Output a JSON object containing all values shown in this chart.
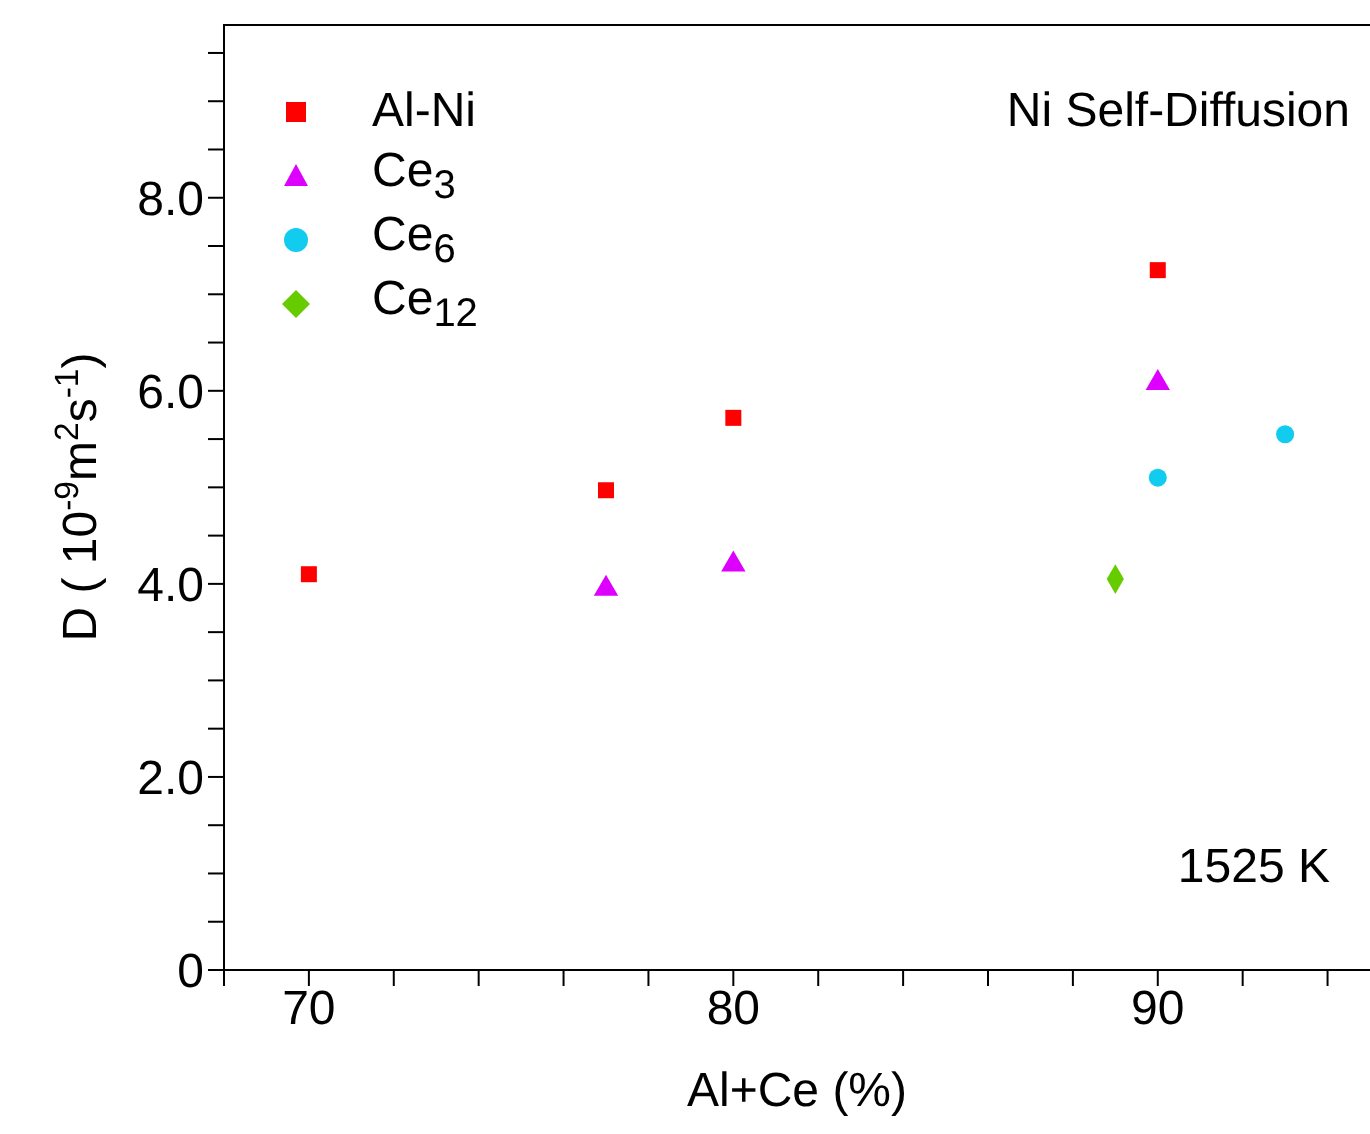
{
  "chart_data": {
    "type": "scatter",
    "xlabel": "Al+Ce (%)",
    "ylabel": "D ( 10$^{-9}$m$^{2}$s$^{-1}$)",
    "xlim": [
      68,
      95
    ],
    "ylim": [
      0,
      9.8
    ],
    "xticks": [
      {
        "value": 68,
        "label": null
      },
      70,
      {
        "value": 72,
        "label": null
      },
      {
        "value": 74,
        "label": null
      },
      {
        "value": 76,
        "label": null
      },
      {
        "value": 78,
        "label": null
      },
      80,
      {
        "value": 82,
        "label": null
      },
      {
        "value": 84,
        "label": null
      },
      {
        "value": 86,
        "label": null
      },
      {
        "value": 88,
        "label": null
      },
      90,
      {
        "value": 92,
        "label": null
      },
      {
        "value": 94,
        "label": null
      }
    ],
    "yticks": [
      0,
      {
        "value": 0.5,
        "label": null
      },
      {
        "value": 1,
        "label": null
      },
      {
        "value": 1.5,
        "label": null
      },
      {
        "value": 2,
        "label": "2.0"
      },
      {
        "value": 2.5,
        "label": null
      },
      {
        "value": 3,
        "label": null
      },
      {
        "value": 3.5,
        "label": null
      },
      {
        "value": 4,
        "label": "4.0"
      },
      {
        "value": 4.5,
        "label": null
      },
      {
        "value": 5,
        "label": null
      },
      {
        "value": 5.5,
        "label": null
      },
      {
        "value": 6,
        "label": "6.0"
      },
      {
        "value": 6.5,
        "label": null
      },
      {
        "value": 7,
        "label": null
      },
      {
        "value": 7.5,
        "label": null
      },
      {
        "value": 8,
        "label": "8.0"
      },
      {
        "value": 8.5,
        "label": null
      },
      {
        "value": 9,
        "label": null
      },
      {
        "value": 9.5,
        "label": null
      }
    ],
    "grid": false,
    "legend": "top left",
    "annotations": [
      "Ni Self-Diffusion",
      "1525 K"
    ],
    "series": [
      {
        "name": "Al-Ni",
        "color": "#ff0000",
        "marker": "square",
        "x": [
          70,
          77,
          80,
          90
        ],
        "values": [
          4.1,
          4.97,
          5.72,
          7.25
        ]
      },
      {
        "name": "Ce$_{3}$",
        "color": "#dd00ff",
        "marker": "triangle",
        "x": [
          77,
          80,
          90
        ],
        "values": [
          3.95,
          4.2,
          6.08
        ]
      },
      {
        "name": "Ce$_{6}$",
        "color": "#11ccee",
        "marker": "circle",
        "x": [
          90,
          93
        ],
        "values": [
          5.1,
          5.55
        ]
      },
      {
        "name": "Ce$_{12}$",
        "color": "#66cc00",
        "marker": "diamond",
        "x": [
          89
        ],
        "values": [
          4.05
        ]
      }
    ]
  }
}
